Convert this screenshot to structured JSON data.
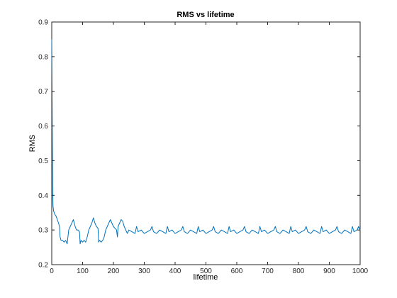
{
  "chart_data": {
    "type": "line",
    "title": "RMS vs lifetime",
    "xlabel": "lifetime",
    "ylabel": "RMS",
    "xlim": [
      0,
      1000
    ],
    "ylim": [
      0.2,
      0.9
    ],
    "xticks": [
      "0",
      "100",
      "200",
      "300",
      "400",
      "500",
      "600",
      "700",
      "800",
      "900",
      "1000"
    ],
    "yticks": [
      "0.2",
      "0.3",
      "0.4",
      "0.5",
      "0.6",
      "0.7",
      "0.8",
      "0.9"
    ],
    "grid": false,
    "line_color": "#0072BD",
    "series": [
      {
        "x": [
          0,
          1,
          2,
          3,
          4,
          6,
          8,
          10,
          14,
          18,
          22,
          25,
          27,
          30,
          35,
          40,
          45,
          50,
          55,
          60,
          65,
          70,
          73,
          76,
          80,
          85,
          90,
          92,
          95,
          100,
          105,
          110,
          115,
          120,
          125,
          130,
          135,
          140,
          145,
          150,
          152,
          155,
          160,
          165,
          170,
          175,
          180,
          185,
          190,
          195,
          200,
          205,
          210,
          213,
          215,
          220,
          225,
          230,
          235,
          240,
          245,
          250,
          260,
          270,
          275,
          280,
          290,
          300,
          310,
          320,
          325,
          330,
          340,
          350,
          360,
          370,
          375,
          380,
          390,
          400,
          410,
          420,
          425,
          430,
          440,
          450,
          460,
          470,
          475,
          480,
          490,
          500,
          510,
          520,
          525,
          530,
          540,
          550,
          560,
          570,
          575,
          580,
          590,
          600,
          610,
          620,
          625,
          630,
          640,
          650,
          660,
          670,
          675,
          680,
          690,
          700,
          710,
          720,
          725,
          730,
          740,
          750,
          760,
          770,
          775,
          780,
          790,
          800,
          810,
          820,
          825,
          830,
          840,
          850,
          860,
          870,
          875,
          880,
          890,
          900,
          910,
          920,
          925,
          930,
          940,
          950,
          960,
          970,
          975,
          980,
          990,
          995,
          1000
        ],
        "y": [
          0.85,
          0.72,
          0.55,
          0.42,
          0.37,
          0.355,
          0.35,
          0.345,
          0.34,
          0.33,
          0.32,
          0.31,
          0.28,
          0.27,
          0.27,
          0.265,
          0.27,
          0.26,
          0.3,
          0.31,
          0.32,
          0.33,
          0.32,
          0.31,
          0.3,
          0.3,
          0.295,
          0.26,
          0.27,
          0.265,
          0.27,
          0.265,
          0.28,
          0.3,
          0.31,
          0.32,
          0.335,
          0.32,
          0.31,
          0.305,
          0.265,
          0.27,
          0.265,
          0.27,
          0.28,
          0.3,
          0.31,
          0.32,
          0.33,
          0.32,
          0.31,
          0.305,
          0.3,
          0.28,
          0.31,
          0.32,
          0.33,
          0.325,
          0.31,
          0.3,
          0.29,
          0.3,
          0.295,
          0.29,
          0.31,
          0.295,
          0.3,
          0.29,
          0.295,
          0.3,
          0.31,
          0.295,
          0.29,
          0.3,
          0.295,
          0.29,
          0.31,
          0.295,
          0.3,
          0.29,
          0.295,
          0.3,
          0.31,
          0.295,
          0.29,
          0.3,
          0.295,
          0.29,
          0.31,
          0.295,
          0.3,
          0.29,
          0.295,
          0.3,
          0.31,
          0.295,
          0.29,
          0.3,
          0.295,
          0.29,
          0.31,
          0.295,
          0.3,
          0.29,
          0.295,
          0.3,
          0.31,
          0.295,
          0.29,
          0.3,
          0.295,
          0.29,
          0.31,
          0.295,
          0.3,
          0.29,
          0.295,
          0.3,
          0.31,
          0.295,
          0.29,
          0.3,
          0.295,
          0.29,
          0.31,
          0.295,
          0.3,
          0.29,
          0.295,
          0.3,
          0.31,
          0.295,
          0.29,
          0.3,
          0.295,
          0.29,
          0.31,
          0.295,
          0.3,
          0.29,
          0.295,
          0.3,
          0.31,
          0.295,
          0.29,
          0.3,
          0.295,
          0.29,
          0.31,
          0.295,
          0.3,
          0.31,
          0.3
        ]
      }
    ]
  }
}
